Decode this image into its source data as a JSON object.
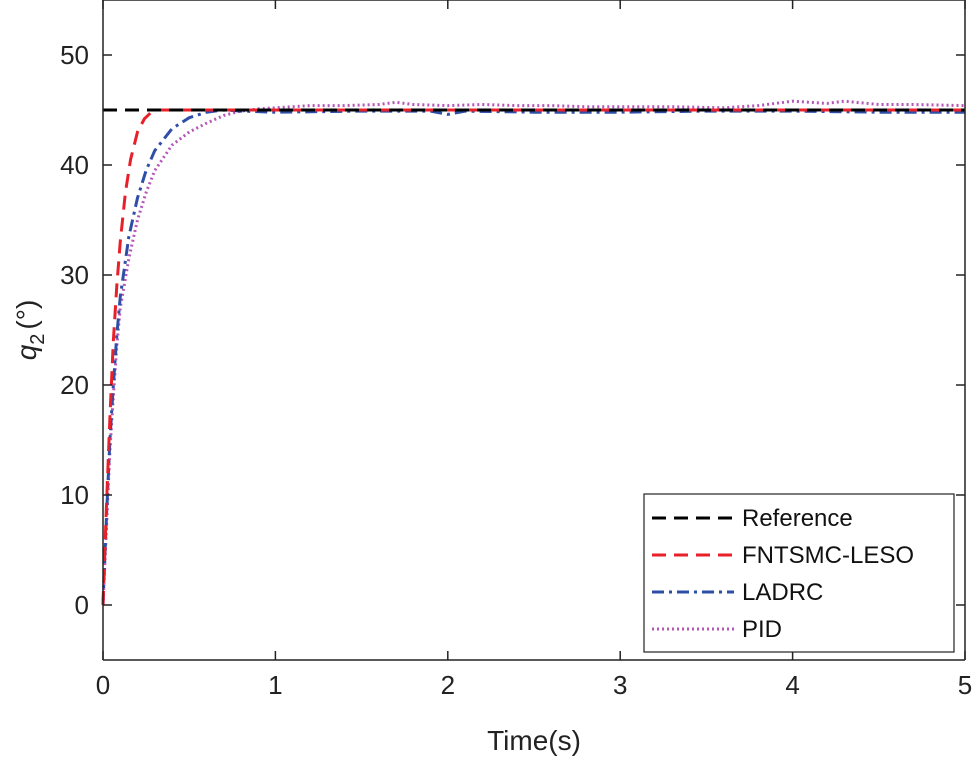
{
  "chart_data": {
    "type": "line",
    "title": "",
    "xlabel": "Time(s)",
    "ylabel_symbol": "q",
    "ylabel_subscript": "2",
    "ylabel_unit": "(°)",
    "xlim": [
      0,
      5
    ],
    "ylim": [
      -5,
      55
    ],
    "xticks": [
      0,
      1,
      2,
      3,
      4,
      5
    ],
    "yticks": [
      0,
      10,
      20,
      30,
      40,
      50
    ],
    "grid": false,
    "legend_position": "bottom-right",
    "series": [
      {
        "name": "Reference",
        "color": "#000000",
        "style": "dashed",
        "x": [
          0,
          5
        ],
        "y": [
          45,
          45
        ]
      },
      {
        "name": "FNTSMC-LESO",
        "color": "#e8202a",
        "style": "dashed",
        "x": [
          0,
          0.02,
          0.04,
          0.06,
          0.08,
          0.1,
          0.13,
          0.16,
          0.2,
          0.24,
          0.28,
          0.32,
          0.4,
          0.5,
          1,
          2,
          3,
          4,
          5
        ],
        "y": [
          0,
          9,
          17,
          24,
          29,
          33,
          37.5,
          40.5,
          43,
          44.2,
          44.8,
          45,
          45,
          45,
          45,
          45,
          45,
          45,
          45
        ]
      },
      {
        "name": "LADRC",
        "color": "#2e4ea8",
        "style": "dashdot",
        "x": [
          0,
          0.02,
          0.04,
          0.06,
          0.08,
          0.1,
          0.15,
          0.2,
          0.25,
          0.3,
          0.4,
          0.5,
          0.6,
          0.7,
          0.8,
          1,
          1.5,
          1.9,
          2,
          2.1,
          2.5,
          3,
          3.5,
          4,
          4.5,
          5
        ],
        "y": [
          0,
          8,
          15,
          20,
          24.5,
          28,
          33.5,
          37,
          39.5,
          41.3,
          43.3,
          44.3,
          44.8,
          45,
          44.9,
          44.8,
          44.9,
          44.9,
          44.6,
          44.9,
          44.8,
          44.8,
          44.9,
          44.9,
          44.8,
          44.8
        ]
      },
      {
        "name": "PID",
        "color": "#b556b8",
        "style": "dotted",
        "x": [
          0,
          0.02,
          0.04,
          0.06,
          0.08,
          0.1,
          0.15,
          0.2,
          0.25,
          0.3,
          0.4,
          0.5,
          0.6,
          0.7,
          0.8,
          0.9,
          1,
          1.2,
          1.4,
          1.6,
          1.7,
          1.8,
          2,
          2.2,
          2.4,
          2.6,
          2.8,
          3,
          3.3,
          3.6,
          3.8,
          4,
          4.2,
          4.3,
          4.5,
          4.7,
          5
        ],
        "y": [
          0,
          7,
          14,
          19,
          23.5,
          27,
          31.5,
          35,
          37.5,
          39.5,
          41.8,
          43,
          43.8,
          44.5,
          44.9,
          45.1,
          45.2,
          45.4,
          45.4,
          45.5,
          45.7,
          45.5,
          45.4,
          45.5,
          45.4,
          45.4,
          45.3,
          45.3,
          45.3,
          45.2,
          45.4,
          45.8,
          45.6,
          45.8,
          45.5,
          45.5,
          45.4
        ]
      }
    ]
  }
}
